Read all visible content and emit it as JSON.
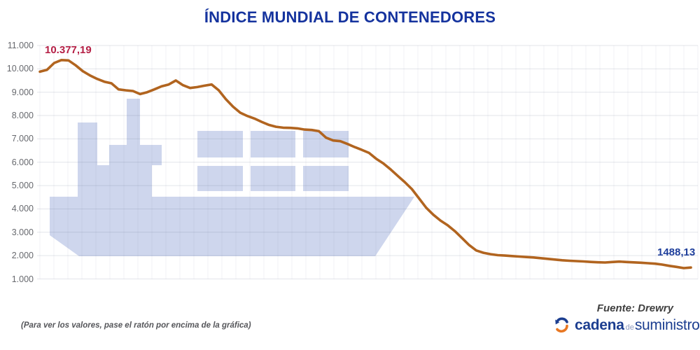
{
  "title": "ÍNDICE MUNDIAL DE CONTENEDORES",
  "colors": {
    "title": "#15339e",
    "line": "#b1641f",
    "peak_label": "#b51f45",
    "end_label": "#1e3e9b",
    "axis_text": "#67696e",
    "grid_major": "rgba(100,110,140,0.18)",
    "grid_minor": "rgba(100,110,140,0.09)",
    "watermark": "#ced6ed",
    "hint_text": "#55565a",
    "footer_text": "#3f3f3f",
    "logo_blue": "#1c3e90",
    "logo_gray": "#8f9cc0",
    "logo_orange": "#e87722"
  },
  "chart_data": {
    "type": "line",
    "title": "ÍNDICE MUNDIAL DE CONTENEDORES",
    "xlabel": "",
    "ylabel": "",
    "x_tick_labels": [],
    "ylim": [
      1000,
      11000
    ],
    "y_ticks": [
      11000,
      10000,
      9000,
      8000,
      7000,
      6000,
      5000,
      4000,
      3000,
      2000,
      1000
    ],
    "y_tick_labels": [
      "11.000",
      "10.000",
      "9.000",
      "8.000",
      "7.000",
      "6.000",
      "5.000",
      "4.000",
      "3.000",
      "2.000",
      "1.000"
    ],
    "grid": true,
    "legend": false,
    "series_name": "Índice mundial de contenedores",
    "values": [
      9880,
      9960,
      10250,
      10377.19,
      10360,
      10150,
      9900,
      9720,
      9570,
      9450,
      9380,
      9120,
      9080,
      9050,
      8920,
      9000,
      9120,
      9250,
      9330,
      9500,
      9300,
      9180,
      9220,
      9280,
      9330,
      9080,
      8700,
      8380,
      8120,
      7980,
      7870,
      7730,
      7600,
      7520,
      7480,
      7470,
      7450,
      7400,
      7380,
      7330,
      7050,
      6930,
      6900,
      6780,
      6650,
      6530,
      6400,
      6150,
      5950,
      5700,
      5420,
      5150,
      4850,
      4450,
      4050,
      3750,
      3500,
      3300,
      3050,
      2750,
      2450,
      2220,
      2120,
      2060,
      2020,
      2000,
      1980,
      1960,
      1940,
      1920,
      1890,
      1860,
      1830,
      1800,
      1780,
      1765,
      1750,
      1730,
      1715,
      1705,
      1725,
      1745,
      1725,
      1710,
      1695,
      1675,
      1655,
      1615,
      1560,
      1515,
      1465,
      1488.13
    ],
    "annotations": [
      {
        "text": "10.377,19",
        "index": 3,
        "role": "peak"
      },
      {
        "text": "1488,13",
        "index": 91,
        "role": "latest"
      }
    ]
  },
  "footer": {
    "hint": "(Para ver los valores, pase el ratón por encima de la gráfica)",
    "source": "Fuente: Drewry",
    "logo": {
      "word1": "cadena",
      "word2": "de",
      "word3": "suministro"
    }
  }
}
